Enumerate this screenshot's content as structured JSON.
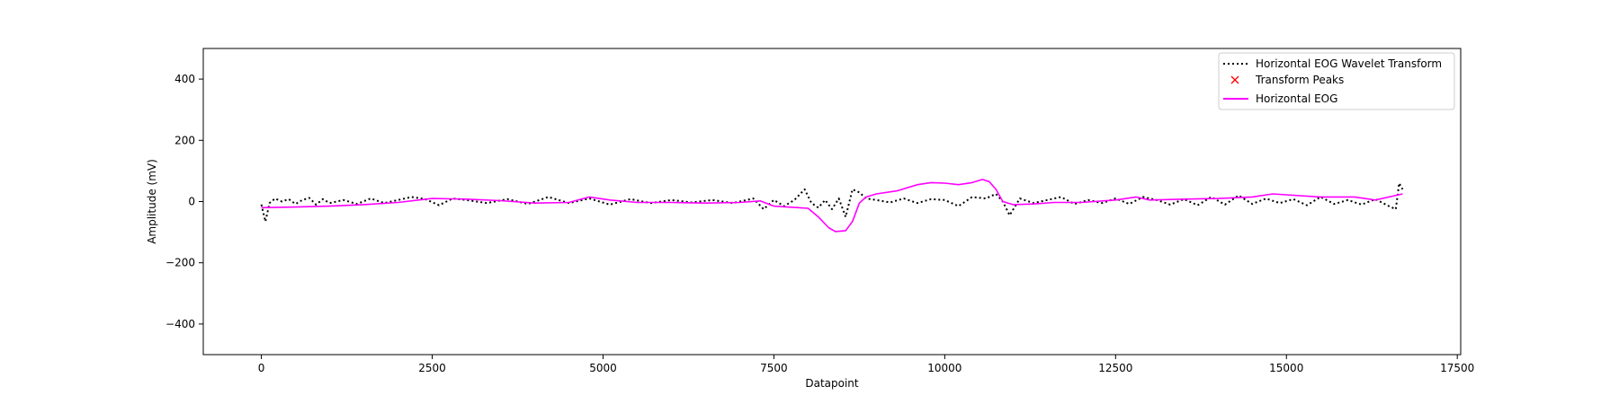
{
  "chart_data": {
    "type": "line",
    "title": "",
    "xlabel": "Datapoint",
    "ylabel": "Amplitude (mV)",
    "xlim": [
      -850,
      17550
    ],
    "ylim": [
      -500,
      500
    ],
    "xticks": [
      0,
      2500,
      5000,
      7500,
      10000,
      12500,
      15000,
      17500
    ],
    "yticks": [
      -400,
      -200,
      0,
      200,
      400
    ],
    "xtick_labels": [
      "0",
      "2500",
      "5000",
      "7500",
      "10000",
      "12500",
      "15000",
      "17500"
    ],
    "ytick_labels": [
      "−400",
      "−200",
      "0",
      "200",
      "400"
    ],
    "grid": false,
    "legend_position": "top-right",
    "series": [
      {
        "name": "Horizontal EOG Wavelet Transform",
        "style": "dotted",
        "color": "#000000",
        "x": [
          0,
          60,
          120,
          200,
          300,
          400,
          500,
          600,
          700,
          800,
          900,
          1000,
          1200,
          1400,
          1600,
          1800,
          2000,
          2200,
          2400,
          2600,
          2800,
          3000,
          3300,
          3600,
          3900,
          4200,
          4500,
          4800,
          5100,
          5400,
          5700,
          6000,
          6300,
          6600,
          6900,
          7200,
          7350,
          7500,
          7650,
          7800,
          7950,
          8050,
          8150,
          8250,
          8350,
          8450,
          8550,
          8650,
          8750,
          8850,
          9000,
          9200,
          9400,
          9600,
          9800,
          10000,
          10200,
          10400,
          10600,
          10750,
          10850,
          10950,
          11100,
          11300,
          11500,
          11700,
          11900,
          12100,
          12300,
          12500,
          12700,
          12900,
          13100,
          13300,
          13500,
          13700,
          13900,
          14100,
          14300,
          14500,
          14700,
          14900,
          15100,
          15300,
          15500,
          15700,
          15900,
          16100,
          16300,
          16500,
          16600,
          16650,
          16700
        ],
        "y": [
          -10,
          -65,
          -5,
          10,
          0,
          8,
          -8,
          5,
          12,
          -10,
          8,
          -5,
          5,
          -8,
          10,
          -5,
          5,
          15,
          8,
          -12,
          10,
          5,
          -5,
          8,
          -8,
          15,
          -5,
          10,
          -10,
          8,
          -5,
          5,
          -3,
          5,
          -5,
          10,
          -25,
          5,
          -15,
          5,
          40,
          -5,
          -20,
          5,
          -25,
          10,
          -50,
          40,
          30,
          10,
          5,
          -3,
          10,
          -5,
          8,
          5,
          -15,
          15,
          10,
          25,
          0,
          -45,
          10,
          -5,
          5,
          15,
          -8,
          5,
          -5,
          10,
          -8,
          15,
          5,
          -10,
          8,
          -12,
          15,
          -10,
          20,
          -8,
          10,
          -5,
          8,
          -12,
          15,
          -8,
          5,
          -10,
          8,
          -15,
          -25,
          60,
          40
        ]
      },
      {
        "name": "Transform Peaks",
        "style": "marker-x",
        "color": "#ff0000",
        "x": [],
        "y": []
      },
      {
        "name": "Horizontal EOG",
        "style": "solid",
        "color": "#ff00ff",
        "x": [
          0,
          500,
          1000,
          1500,
          2000,
          2500,
          3000,
          3500,
          4000,
          4500,
          4800,
          5100,
          5500,
          6000,
          6500,
          7000,
          7300,
          7500,
          7700,
          8000,
          8150,
          8300,
          8400,
          8550,
          8650,
          8750,
          8850,
          9000,
          9300,
          9600,
          9800,
          10000,
          10200,
          10400,
          10550,
          10650,
          10750,
          10850,
          11000,
          11300,
          11600,
          12000,
          12500,
          12800,
          13000,
          13500,
          14000,
          14500,
          14800,
          15000,
          15500,
          16000,
          16300,
          16700
        ],
        "y": [
          -20,
          -18,
          -15,
          -10,
          -3,
          10,
          8,
          3,
          -5,
          -3,
          15,
          5,
          -3,
          -3,
          -5,
          -3,
          2,
          -15,
          -18,
          -22,
          -50,
          -85,
          -98,
          -95,
          -65,
          -5,
          15,
          25,
          35,
          55,
          62,
          60,
          55,
          62,
          72,
          65,
          40,
          0,
          -10,
          -8,
          -3,
          -3,
          5,
          15,
          5,
          8,
          10,
          15,
          25,
          22,
          15,
          15,
          5,
          25
        ]
      }
    ]
  }
}
